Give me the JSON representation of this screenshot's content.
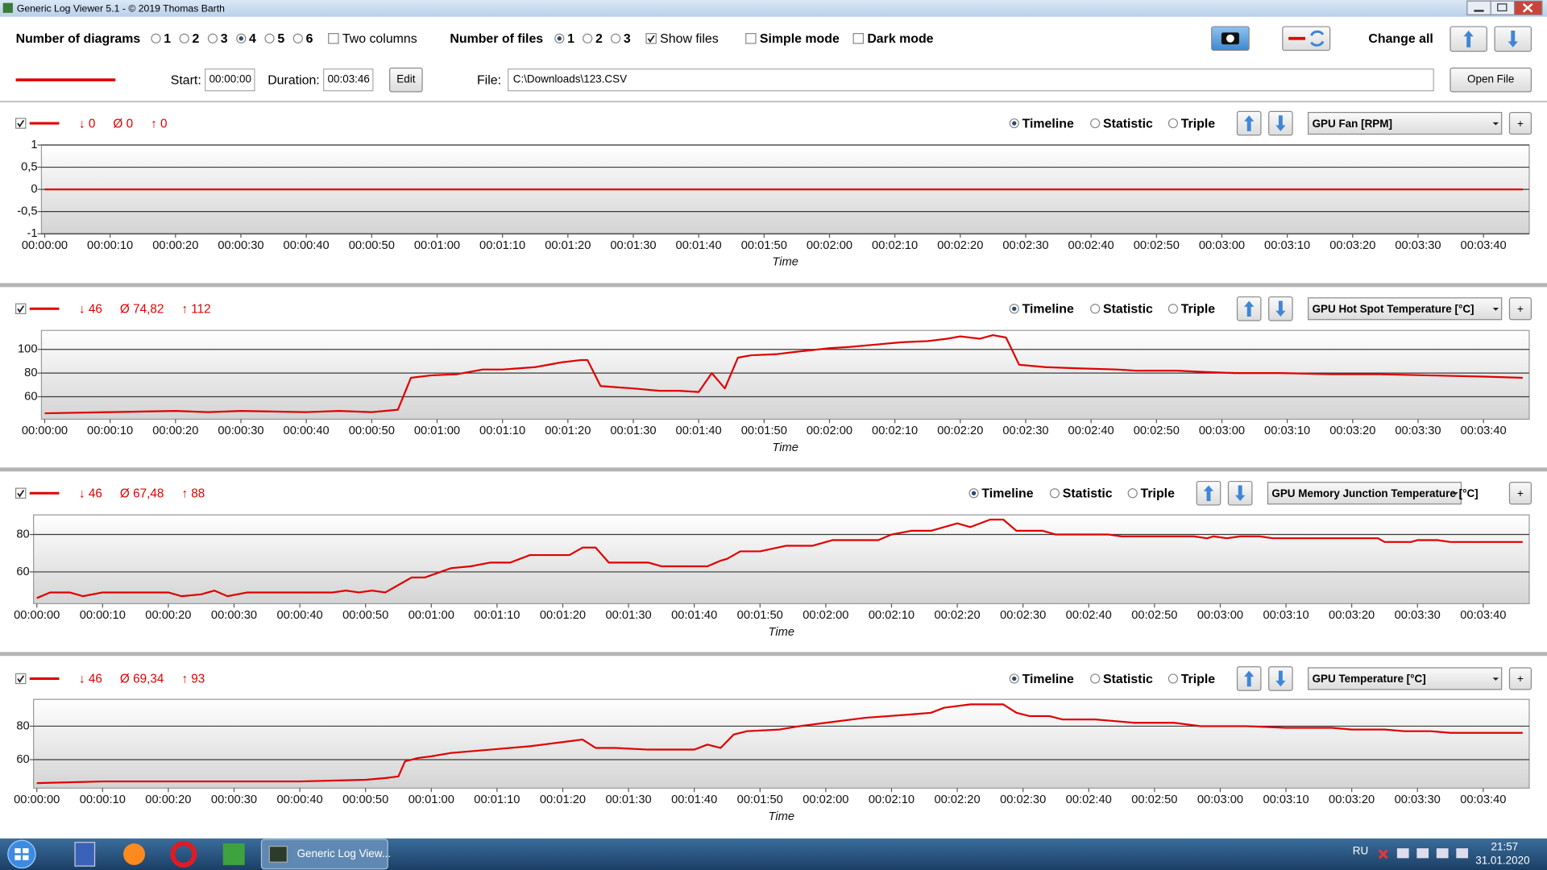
{
  "window": {
    "title": "Generic Log Viewer 5.1 - © 2019 Thomas Barth"
  },
  "toolbar": {
    "diagrams_label": "Number of diagrams",
    "diagram_options": [
      "1",
      "2",
      "3",
      "4",
      "5",
      "6"
    ],
    "diagrams_selected": 3,
    "two_columns": {
      "label": "Two columns",
      "checked": false
    },
    "files_label": "Number of files",
    "file_options": [
      "1",
      "2",
      "3"
    ],
    "files_selected": 0,
    "show_files": {
      "label": "Show files",
      "checked": true
    },
    "simple_mode": {
      "label": "Simple mode",
      "checked": false
    },
    "dark_mode": {
      "label": "Dark mode",
      "checked": false
    },
    "change_all": "Change all"
  },
  "file_bar": {
    "start_label": "Start:",
    "start": "00:00:00",
    "duration_label": "Duration:",
    "duration": "00:03:46",
    "edit": "Edit",
    "file_label": "File:",
    "file": "C:\\Downloads\\123.CSV",
    "open": "Open File"
  },
  "taskbar": {
    "window": "Generic Log View...",
    "lang": "RU",
    "time": "21:57",
    "date": "31.01.2020"
  },
  "chart_data": [
    {
      "type": "line",
      "xlabel": "Time",
      "xlim": [
        -0.5,
        227
      ],
      "ylim": [
        -1,
        1
      ],
      "yticks": [
        -1,
        {
          "value": -0.5,
          "label": "-0,5"
        },
        0,
        {
          "value": 0.5,
          "label": "0,5"
        },
        1
      ],
      "xticks": [
        {
          "value": 0,
          "label": "00:00:00"
        },
        {
          "value": 10,
          "label": "00:00:10"
        },
        {
          "value": 20,
          "label": "00:00:20"
        },
        {
          "value": 30,
          "label": "00:00:30"
        },
        {
          "value": 40,
          "label": "00:00:40"
        },
        {
          "value": 50,
          "label": "00:00:50"
        },
        {
          "value": 60,
          "label": "00:01:00"
        },
        {
          "value": 70,
          "label": "00:01:10"
        },
        {
          "value": 80,
          "label": "00:01:20"
        },
        {
          "value": 90,
          "label": "00:01:30"
        },
        {
          "value": 100,
          "label": "00:01:40"
        },
        {
          "value": 110,
          "label": "00:01:50"
        },
        {
          "value": 120,
          "label": "00:02:00"
        },
        {
          "value": 130,
          "label": "00:02:10"
        },
        {
          "value": 140,
          "label": "00:02:20"
        },
        {
          "value": 150,
          "label": "00:02:30"
        },
        {
          "value": 160,
          "label": "00:02:40"
        },
        {
          "value": 170,
          "label": "00:02:50"
        },
        {
          "value": 180,
          "label": "00:03:00"
        },
        {
          "value": 190,
          "label": "00:03:10"
        },
        {
          "value": 200,
          "label": "00:03:20"
        },
        {
          "value": 210,
          "label": "00:03:30"
        },
        {
          "value": 220,
          "label": "00:03:40"
        }
      ],
      "grid": true,
      "stats": [
        {
          "symbol": "↓",
          "value": 0
        },
        {
          "symbol": "Ø",
          "value": 0
        },
        {
          "symbol": "↑",
          "value": 0
        }
      ],
      "views": [
        "Timeline",
        "Statistic",
        "Triple"
      ],
      "selected_view": 0,
      "add": "+",
      "x": [
        0,
        226
      ],
      "series": [
        {
          "name": "GPU Fan [RPM]",
          "color": "#e00000",
          "values": [
            0,
            0
          ]
        }
      ]
    },
    {
      "type": "line",
      "xlabel": "Time",
      "xlim": [
        -0.5,
        227
      ],
      "ylim": [
        41,
        116
      ],
      "yticks": [
        60,
        80,
        100
      ],
      "xticks": [
        {
          "value": 0,
          "label": "00:00:00"
        },
        {
          "value": 10,
          "label": "00:00:10"
        },
        {
          "value": 20,
          "label": "00:00:20"
        },
        {
          "value": 30,
          "label": "00:00:30"
        },
        {
          "value": 40,
          "label": "00:00:40"
        },
        {
          "value": 50,
          "label": "00:00:50"
        },
        {
          "value": 60,
          "label": "00:01:00"
        },
        {
          "value": 70,
          "label": "00:01:10"
        },
        {
          "value": 80,
          "label": "00:01:20"
        },
        {
          "value": 90,
          "label": "00:01:30"
        },
        {
          "value": 100,
          "label": "00:01:40"
        },
        {
          "value": 110,
          "label": "00:01:50"
        },
        {
          "value": 120,
          "label": "00:02:00"
        },
        {
          "value": 130,
          "label": "00:02:10"
        },
        {
          "value": 140,
          "label": "00:02:20"
        },
        {
          "value": 150,
          "label": "00:02:30"
        },
        {
          "value": 160,
          "label": "00:02:40"
        },
        {
          "value": 170,
          "label": "00:02:50"
        },
        {
          "value": 180,
          "label": "00:03:00"
        },
        {
          "value": 190,
          "label": "00:03:10"
        },
        {
          "value": 200,
          "label": "00:03:20"
        },
        {
          "value": 210,
          "label": "00:03:30"
        },
        {
          "value": 220,
          "label": "00:03:40"
        }
      ],
      "grid": true,
      "stats": [
        {
          "symbol": "↓",
          "value": 46
        },
        {
          "symbol": "Ø",
          "value": {
            "value": 74.82,
            "label": "74,82"
          }
        },
        {
          "symbol": "↑",
          "value": 112
        }
      ],
      "views": [
        "Timeline",
        "Statistic",
        "Triple"
      ],
      "selected_view": 0,
      "add": "+",
      "x": [
        0,
        10,
        20,
        25,
        30,
        40,
        45,
        50,
        52,
        54,
        56,
        59,
        63,
        67,
        70,
        75,
        79,
        82,
        83,
        85,
        90,
        94,
        97,
        100,
        102,
        104,
        106,
        108,
        112,
        115,
        120,
        123,
        127,
        131,
        135,
        138,
        140,
        143,
        145,
        147,
        149,
        153,
        158,
        164,
        167,
        173,
        177,
        182,
        189,
        197,
        204,
        212,
        220,
        226
      ],
      "series": [
        {
          "name": "GPU Hot Spot Temperature [°C]",
          "color": "#e00000",
          "values": [
            46,
            47,
            48,
            47,
            48,
            47,
            48,
            47,
            48,
            49,
            76,
            78,
            79,
            83,
            83,
            85,
            89,
            91,
            91,
            69,
            67,
            65,
            65,
            64,
            80,
            67,
            93,
            95,
            96,
            98,
            101,
            102,
            104,
            106,
            107,
            109,
            111,
            109,
            112,
            110,
            87,
            85,
            84,
            83,
            82,
            82,
            81,
            80,
            80,
            79,
            79,
            78,
            77,
            76
          ]
        }
      ]
    },
    {
      "type": "line",
      "xlabel": "Time",
      "xlim": [
        -0.5,
        227
      ],
      "ylim": [
        43,
        90.5
      ],
      "yticks": [
        60,
        80
      ],
      "xticks": [
        {
          "value": 0,
          "label": "00:00:00"
        },
        {
          "value": 10,
          "label": "00:00:10"
        },
        {
          "value": 20,
          "label": "00:00:20"
        },
        {
          "value": 30,
          "label": "00:00:30"
        },
        {
          "value": 40,
          "label": "00:00:40"
        },
        {
          "value": 50,
          "label": "00:00:50"
        },
        {
          "value": 60,
          "label": "00:01:00"
        },
        {
          "value": 70,
          "label": "00:01:10"
        },
        {
          "value": 80,
          "label": "00:01:20"
        },
        {
          "value": 90,
          "label": "00:01:30"
        },
        {
          "value": 100,
          "label": "00:01:40"
        },
        {
          "value": 110,
          "label": "00:01:50"
        },
        {
          "value": 120,
          "label": "00:02:00"
        },
        {
          "value": 130,
          "label": "00:02:10"
        },
        {
          "value": 140,
          "label": "00:02:20"
        },
        {
          "value": 150,
          "label": "00:02:30"
        },
        {
          "value": 160,
          "label": "00:02:40"
        },
        {
          "value": 170,
          "label": "00:02:50"
        },
        {
          "value": 180,
          "label": "00:03:00"
        },
        {
          "value": 190,
          "label": "00:03:10"
        },
        {
          "value": 200,
          "label": "00:03:20"
        },
        {
          "value": 210,
          "label": "00:03:30"
        },
        {
          "value": 220,
          "label": "00:03:40"
        }
      ],
      "grid": true,
      "stats": [
        {
          "symbol": "↓",
          "value": 46
        },
        {
          "symbol": "Ø",
          "value": {
            "value": 67.48,
            "label": "67,48"
          }
        },
        {
          "symbol": "↑",
          "value": 88
        }
      ],
      "views": [
        "Timeline",
        "Statistic",
        "Triple"
      ],
      "selected_view": 0,
      "add": "+",
      "x": [
        0,
        2,
        5,
        7,
        10,
        15,
        20,
        22,
        25,
        27,
        29,
        32,
        40,
        45,
        47,
        49,
        51,
        53,
        57,
        59,
        63,
        66,
        69,
        72,
        75,
        81,
        83,
        85,
        87,
        93,
        95,
        102,
        104,
        105,
        107,
        110,
        114,
        118,
        121,
        128,
        130,
        133,
        136,
        140,
        142,
        145,
        147,
        149,
        153,
        155,
        163,
        165,
        176,
        178,
        179,
        181,
        183,
        186,
        188,
        204,
        205,
        209,
        210,
        213,
        215,
        226
      ],
      "series": [
        {
          "name": "GPU Memory Junction Temperature [°C]",
          "color": "#e00000",
          "values": [
            46,
            49,
            49,
            47,
            49,
            49,
            49,
            47,
            48,
            50,
            47,
            49,
            49,
            49,
            50,
            49,
            50,
            49,
            57,
            57,
            62,
            63,
            65,
            65,
            69,
            69,
            73,
            73,
            65,
            65,
            63,
            63,
            66,
            67,
            71,
            71,
            74,
            74,
            77,
            77,
            80,
            82,
            82,
            86,
            84,
            88,
            88,
            82,
            82,
            80,
            80,
            79,
            79,
            78,
            79,
            78,
            79,
            79,
            78,
            78,
            76,
            76,
            77,
            77,
            76,
            76
          ]
        }
      ]
    },
    {
      "type": "line",
      "xlabel": "Time",
      "xlim": [
        -0.5,
        227
      ],
      "ylim": [
        43,
        96
      ],
      "yticks": [
        60,
        80
      ],
      "xticks": [
        {
          "value": 0,
          "label": "00:00:00"
        },
        {
          "value": 10,
          "label": "00:00:10"
        },
        {
          "value": 20,
          "label": "00:00:20"
        },
        {
          "value": 30,
          "label": "00:00:30"
        },
        {
          "value": 40,
          "label": "00:00:40"
        },
        {
          "value": 50,
          "label": "00:00:50"
        },
        {
          "value": 60,
          "label": "00:01:00"
        },
        {
          "value": 70,
          "label": "00:01:10"
        },
        {
          "value": 80,
          "label": "00:01:20"
        },
        {
          "value": 90,
          "label": "00:01:30"
        },
        {
          "value": 100,
          "label": "00:01:40"
        },
        {
          "value": 110,
          "label": "00:01:50"
        },
        {
          "value": 120,
          "label": "00:02:00"
        },
        {
          "value": 130,
          "label": "00:02:10"
        },
        {
          "value": 140,
          "label": "00:02:20"
        },
        {
          "value": 150,
          "label": "00:02:30"
        },
        {
          "value": 160,
          "label": "00:02:40"
        },
        {
          "value": 170,
          "label": "00:02:50"
        },
        {
          "value": 180,
          "label": "00:03:00"
        },
        {
          "value": 190,
          "label": "00:03:10"
        },
        {
          "value": 200,
          "label": "00:03:20"
        },
        {
          "value": 210,
          "label": "00:03:30"
        },
        {
          "value": 220,
          "label": "00:03:40"
        }
      ],
      "grid": true,
      "stats": [
        {
          "symbol": "↓",
          "value": 46
        },
        {
          "symbol": "Ø",
          "value": {
            "value": 69.34,
            "label": "69,34"
          }
        },
        {
          "symbol": "↑",
          "value": 93
        }
      ],
      "views": [
        "Timeline",
        "Statistic",
        "Triple"
      ],
      "selected_view": 0,
      "add": "+",
      "x": [
        0,
        10,
        20,
        30,
        40,
        50,
        53,
        55,
        56,
        58,
        60,
        63,
        69,
        75,
        77,
        81,
        83,
        85,
        88,
        93,
        100,
        102,
        104,
        106,
        108,
        113,
        116,
        120,
        126,
        133,
        136,
        138,
        142,
        147,
        149,
        151,
        154,
        156,
        161,
        164,
        167,
        173,
        177,
        184,
        190,
        197,
        200,
        205,
        208,
        212,
        215,
        226
      ],
      "series": [
        {
          "name": "GPU Temperature [°C]",
          "color": "#e00000",
          "values": [
            46,
            47,
            47,
            47,
            47,
            48,
            49,
            50,
            59,
            61,
            62,
            64,
            66,
            68,
            69,
            71,
            72,
            67,
            67,
            66,
            66,
            69,
            67,
            75,
            77,
            78,
            80,
            82,
            85,
            87,
            88,
            91,
            93,
            93,
            88,
            86,
            86,
            84,
            84,
            83,
            82,
            82,
            80,
            80,
            79,
            79,
            78,
            78,
            77,
            77,
            76,
            76
          ]
        }
      ]
    }
  ]
}
